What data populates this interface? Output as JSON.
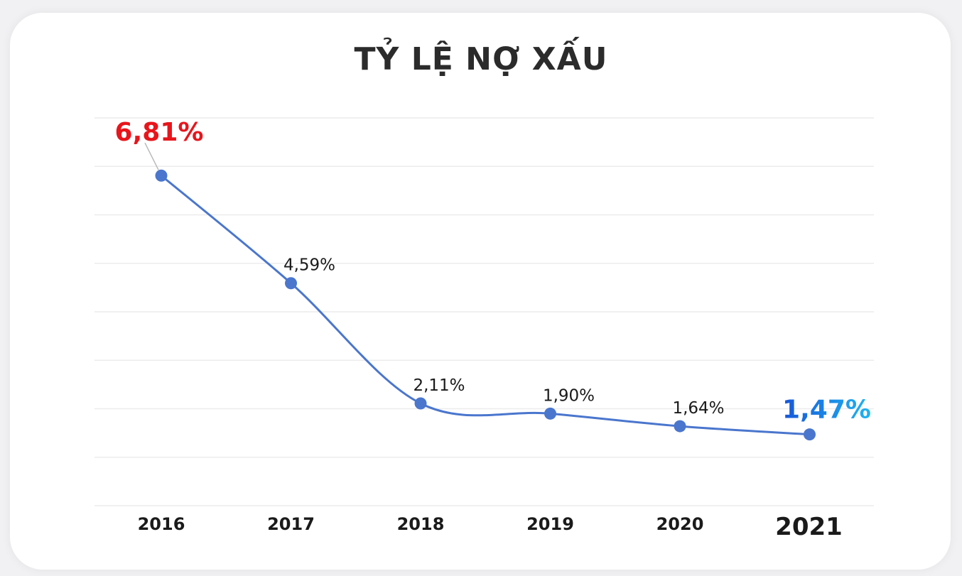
{
  "chart_data": {
    "type": "line",
    "title": "TỶ LỆ NỢ XẤU",
    "categories": [
      "2016",
      "2017",
      "2018",
      "2019",
      "2020",
      "2021"
    ],
    "values": [
      6.81,
      4.59,
      2.11,
      1.9,
      1.64,
      1.47
    ],
    "value_labels": [
      "6,81%",
      "4,59%",
      "2,11%",
      "1,90%",
      "1,64%",
      "1,47%"
    ],
    "xlabel": "",
    "ylabel": "",
    "ylim": [
      0,
      8
    ],
    "grid": true,
    "legend": "none",
    "colors": {
      "line": "#4a76cd",
      "marker": "#4a76cd",
      "highlight_first": "#e8151b",
      "highlight_last_start": "#1656d8",
      "highlight_last_end": "#1fb6f2",
      "text": "#1a1a1a"
    }
  }
}
